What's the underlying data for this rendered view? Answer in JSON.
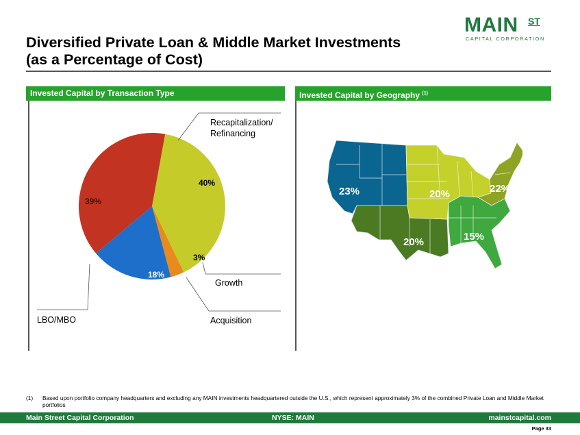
{
  "header": {
    "title_line1": "Diversified Private Loan & Middle Market Investments",
    "title_line2": "(as a Percentage of Cost)"
  },
  "logo": {
    "main": "MAIN",
    "st": "ST",
    "subtitle": "CAPITAL CORPORATION",
    "color": "#1f7a3d"
  },
  "sections": {
    "left_title": "Invested Capital by Transaction Type",
    "right_title": "Invested Capital by Geography",
    "right_title_note": "(1)",
    "bar_color": "#27a32d"
  },
  "chart_data": {
    "type": "pie",
    "title": "Invested Capital by Transaction Type",
    "slices": [
      {
        "name": "Recapitalization/ Refinancing",
        "name_lines": [
          "Recapitalization/",
          "Refinancing"
        ],
        "value": 40,
        "label": "40%",
        "color": "#c5cc2a"
      },
      {
        "name": "Growth",
        "name_lines": [
          "Growth"
        ],
        "value": 3,
        "label": "3%",
        "color": "#e88a1c"
      },
      {
        "name": "Acquisition",
        "name_lines": [
          "Acquisition"
        ],
        "value": 18,
        "label": "18%",
        "color": "#1d6fc9"
      },
      {
        "name": "LBO/MBO",
        "name_lines": [
          "LBO/MBO"
        ],
        "value": 39,
        "label": "39%",
        "color": "#c23321"
      }
    ],
    "legend": "none"
  },
  "geography": {
    "regions": [
      {
        "name": "West",
        "label": "23%",
        "color": "#0a6591"
      },
      {
        "name": "Midwest",
        "label": "20%",
        "color": "#c3d12a"
      },
      {
        "name": "Northeast",
        "label": "22%",
        "color": "#8fa324"
      },
      {
        "name": "Southwest",
        "label": "20%",
        "color": "#4b7a22"
      },
      {
        "name": "Southeast",
        "label": "15%",
        "color": "#3fa83f"
      }
    ]
  },
  "footnote": {
    "number": "(1)",
    "text": "Based upon portfolio company headquarters and excluding any MAIN investments headquartered outside the U.S., which represent approximately 3% of the combined Private Loan and Middle Market portfolios"
  },
  "footer": {
    "left": "Main Street Capital Corporation",
    "center": "NYSE: MAIN",
    "right": "mainstcapital.com",
    "page": "Page  33"
  }
}
